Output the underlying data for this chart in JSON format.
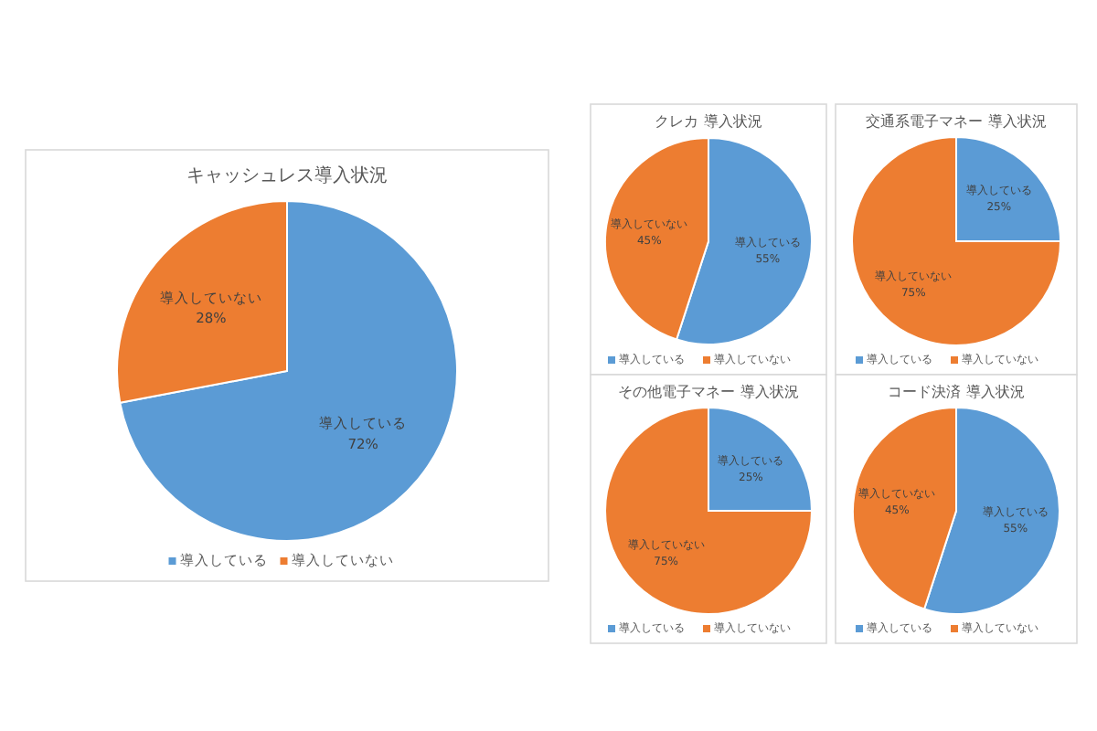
{
  "chart_data": [
    {
      "type": "pie",
      "title": "キャッシュレス導入状況",
      "categories": [
        "導入している",
        "導入していない"
      ],
      "values": [
        72,
        28
      ],
      "value_labels": [
        "72%",
        "28%"
      ],
      "colors": [
        "#5b9bd5",
        "#ed7d31"
      ],
      "legend": "bottom"
    },
    {
      "type": "pie",
      "title": "クレカ 導入状況",
      "categories": [
        "導入している",
        "導入していない"
      ],
      "values": [
        55,
        45
      ],
      "value_labels": [
        "55%",
        "45%"
      ],
      "colors": [
        "#5b9bd5",
        "#ed7d31"
      ],
      "legend": "bottom"
    },
    {
      "type": "pie",
      "title": "交通系電子マネー 導入状況",
      "categories": [
        "導入している",
        "導入していない"
      ],
      "values": [
        25,
        75
      ],
      "value_labels": [
        "25%",
        "75%"
      ],
      "colors": [
        "#5b9bd5",
        "#ed7d31"
      ],
      "legend": "bottom"
    },
    {
      "type": "pie",
      "title": "その他電子マネー 導入状況",
      "categories": [
        "導入している",
        "導入していない"
      ],
      "values": [
        25,
        75
      ],
      "value_labels": [
        "25%",
        "75%"
      ],
      "colors": [
        "#5b9bd5",
        "#ed7d31"
      ],
      "legend": "bottom"
    },
    {
      "type": "pie",
      "title": "コード決済 導入状況",
      "categories": [
        "導入している",
        "導入していない"
      ],
      "values": [
        55,
        45
      ],
      "value_labels": [
        "55%",
        "45%"
      ],
      "colors": [
        "#5b9bd5",
        "#ed7d31"
      ],
      "legend": "bottom"
    }
  ]
}
